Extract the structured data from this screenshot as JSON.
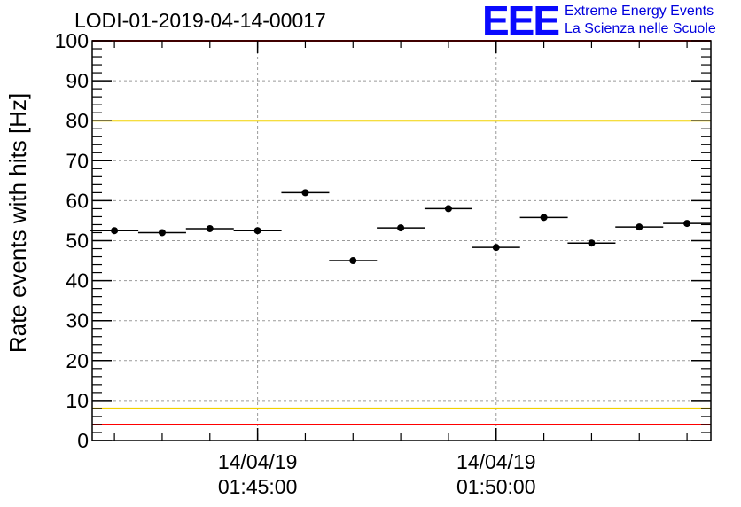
{
  "title": "LODI-01-2019-04-14-00017",
  "logo": {
    "mark": "EEE",
    "line1": "Extreme Energy Events",
    "line2": "La Scienza nelle Scuole"
  },
  "chart_data": {
    "type": "scatter",
    "ylabel": "Rate events with hits [Hz]",
    "xlabel": "",
    "ylim": [
      0,
      100
    ],
    "yticks": [
      0,
      10,
      20,
      30,
      40,
      50,
      60,
      70,
      80,
      90,
      100
    ],
    "xticks": [
      {
        "time": "01:45:00",
        "label_date": "14/04/19",
        "label_time": "01:45:00"
      },
      {
        "time": "01:50:00",
        "label_date": "14/04/19",
        "label_time": "01:50:00"
      }
    ],
    "xlim": [
      "01:41:32",
      "01:54:30"
    ],
    "grid": true,
    "series": [
      {
        "points": [
          {
            "time": "01:42:00",
            "value": 52.5
          },
          {
            "time": "01:43:00",
            "value": 52.0
          },
          {
            "time": "01:44:00",
            "value": 53.0
          },
          {
            "time": "01:45:00",
            "value": 52.5
          },
          {
            "time": "01:46:00",
            "value": 62.0
          },
          {
            "time": "01:47:00",
            "value": 45.0
          },
          {
            "time": "01:48:00",
            "value": 53.2
          },
          {
            "time": "01:49:00",
            "value": 58.0
          },
          {
            "time": "01:50:00",
            "value": 48.3
          },
          {
            "time": "01:51:00",
            "value": 55.8
          },
          {
            "time": "01:52:00",
            "value": 49.4
          },
          {
            "time": "01:53:00",
            "value": 53.4
          },
          {
            "time": "01:54:00",
            "value": 54.3
          }
        ]
      }
    ],
    "reference_lines": [
      {
        "value": 100,
        "color": "#ff0000"
      },
      {
        "value": 80,
        "color": "#f2d200"
      },
      {
        "value": 8,
        "color": "#f2d200"
      },
      {
        "value": 4,
        "color": "#ff0000"
      }
    ]
  }
}
